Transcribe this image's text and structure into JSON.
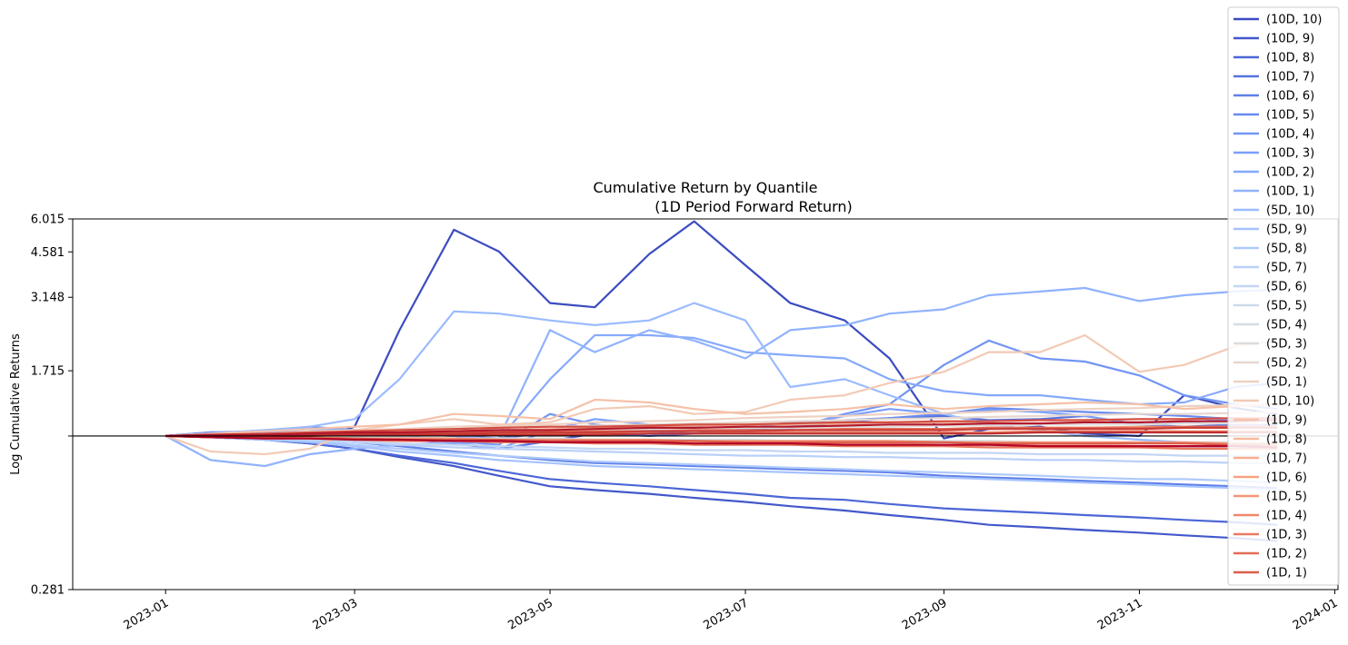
{
  "chart_data": {
    "type": "line",
    "title": "Cumulative Return by Quantile",
    "subtitle": "(1D Period Forward Return)",
    "ylabel": "Log Cumulative Returns",
    "xlabel": "",
    "yscale": "log",
    "ylim": [
      0.281,
      6.015
    ],
    "yticks": [
      0.281,
      1.715,
      3.148,
      4.581,
      6.015
    ],
    "ytick_labels": [
      "0.281",
      "1.715",
      "3.148",
      "4.581",
      "6.015"
    ],
    "xlim": [
      "2022-12-03",
      "2024-01-02"
    ],
    "xticks": [
      "2023-01-01",
      "2023-03-01",
      "2023-05-01",
      "2023-07-01",
      "2023-09-01",
      "2023-11-01",
      "2024-01-01"
    ],
    "xtick_labels": [
      "2023-01",
      "2023-03",
      "2023-05",
      "2023-07",
      "2023-09",
      "2023-11",
      "2024-01"
    ],
    "reference_line": 1.0,
    "grid": false,
    "legend_position": "top-right",
    "x": [
      "2023-01-01",
      "2023-01-15",
      "2023-02-01",
      "2023-02-15",
      "2023-03-01",
      "2023-03-15",
      "2023-04-01",
      "2023-04-15",
      "2023-05-01",
      "2023-05-15",
      "2023-06-01",
      "2023-06-15",
      "2023-07-01",
      "2023-07-15",
      "2023-08-01",
      "2023-08-15",
      "2023-09-01",
      "2023-09-15",
      "2023-10-01",
      "2023-10-15",
      "2023-11-01",
      "2023-11-15",
      "2023-12-01",
      "2023-12-14"
    ],
    "series": [
      {
        "name": "(10D, 10)",
        "color": "#3b4cc0",
        "values": [
          1.0,
          1.03,
          1.02,
          0.96,
          1.08,
          2.4,
          5.5,
          4.6,
          3.0,
          2.9,
          4.5,
          5.9,
          4.1,
          3.0,
          2.6,
          1.9,
          0.98,
          1.06,
          1.08,
          1.02,
          1.0,
          1.4,
          1.26,
          1.2
        ]
      },
      {
        "name": "(10D, 9)",
        "color": "#4358cb",
        "values": [
          1.0,
          0.99,
          0.97,
          0.94,
          0.9,
          0.84,
          0.78,
          0.72,
          0.66,
          0.64,
          0.62,
          0.6,
          0.58,
          0.56,
          0.54,
          0.52,
          0.5,
          0.48,
          0.47,
          0.46,
          0.45,
          0.44,
          0.43,
          0.42
        ]
      },
      {
        "name": "(10D, 8)",
        "color": "#4c66d6",
        "values": [
          1.0,
          0.99,
          0.97,
          0.94,
          0.9,
          0.85,
          0.8,
          0.75,
          0.7,
          0.68,
          0.66,
          0.64,
          0.62,
          0.6,
          0.59,
          0.57,
          0.55,
          0.54,
          0.53,
          0.52,
          0.51,
          0.5,
          0.49,
          0.48
        ]
      },
      {
        "name": "(10D, 7)",
        "color": "#5673e0",
        "values": [
          1.0,
          1.02,
          1.03,
          1.02,
          1.0,
          0.98,
          0.94,
          0.9,
          0.96,
          1.02,
          1.0,
          1.02,
          1.05,
          1.08,
          1.12,
          1.16,
          1.18,
          1.14,
          1.15,
          1.18,
          1.1,
          1.08,
          1.1,
          1.1
        ]
      },
      {
        "name": "(10D, 6)",
        "color": "#5f7fe8",
        "values": [
          1.0,
          1.01,
          1.0,
          0.98,
          0.95,
          0.92,
          0.88,
          0.85,
          0.82,
          0.8,
          0.79,
          0.78,
          0.77,
          0.76,
          0.75,
          0.74,
          0.72,
          0.71,
          0.7,
          0.69,
          0.68,
          0.67,
          0.66,
          0.65
        ]
      },
      {
        "name": "(10D, 5)",
        "color": "#688aef",
        "values": [
          1.0,
          1.03,
          1.04,
          1.06,
          1.05,
          1.02,
          1.0,
          0.98,
          1.03,
          1.08,
          1.04,
          1.02,
          1.06,
          1.12,
          1.14,
          1.16,
          1.2,
          1.26,
          1.24,
          1.22,
          1.2,
          1.18,
          1.15,
          1.14
        ]
      },
      {
        "name": "(10D, 4)",
        "color": "#7295f4",
        "values": [
          1.0,
          1.02,
          1.04,
          1.08,
          1.05,
          1.0,
          0.96,
          0.93,
          1.2,
          1.1,
          1.05,
          1.08,
          1.04,
          1.06,
          1.2,
          1.3,
          1.8,
          2.2,
          1.9,
          1.85,
          1.65,
          1.4,
          1.3,
          1.25
        ]
      },
      {
        "name": "(10D, 3)",
        "color": "#7b9ff9",
        "values": [
          1.0,
          1.02,
          1.03,
          1.06,
          1.03,
          1.0,
          0.95,
          0.9,
          1.05,
          1.15,
          1.1,
          1.05,
          1.02,
          1.08,
          1.18,
          1.25,
          1.2,
          1.24,
          1.22,
          1.18,
          1.1,
          1.12,
          1.15,
          1.15
        ]
      },
      {
        "name": "(10D, 2)",
        "color": "#86a9fc",
        "values": [
          1.0,
          1.02,
          1.05,
          1.06,
          1.04,
          1.02,
          1.0,
          0.97,
          1.6,
          2.3,
          2.3,
          2.25,
          2.0,
          1.95,
          1.9,
          1.6,
          1.45,
          1.4,
          1.4,
          1.35,
          1.3,
          1.32,
          1.5,
          1.55
        ]
      },
      {
        "name": "(10D, 1)",
        "color": "#90b2fe",
        "values": [
          1.0,
          0.82,
          0.78,
          0.86,
          0.9,
          0.93,
          0.95,
          0.98,
          2.4,
          2.0,
          2.4,
          2.2,
          1.9,
          2.4,
          2.5,
          2.75,
          2.85,
          3.2,
          3.3,
          3.4,
          3.05,
          3.2,
          3.3,
          3.35
        ]
      },
      {
        "name": "(5D, 10)",
        "color": "#9abbff",
        "values": [
          1.0,
          1.02,
          1.05,
          1.08,
          1.15,
          1.6,
          2.8,
          2.75,
          2.6,
          2.5,
          2.6,
          3.0,
          2.6,
          1.5,
          1.6,
          1.4,
          1.2,
          1.1,
          1.05,
          1.0,
          0.97,
          0.95,
          0.92,
          0.9
        ]
      },
      {
        "name": "(5D, 9)",
        "color": "#a5c3fe",
        "values": [
          1.0,
          0.99,
          0.97,
          0.95,
          0.92,
          0.88,
          0.85,
          0.82,
          0.8,
          0.78,
          0.77,
          0.76,
          0.75,
          0.74,
          0.73,
          0.72,
          0.71,
          0.7,
          0.69,
          0.68,
          0.67,
          0.66,
          0.65,
          0.64
        ]
      },
      {
        "name": "(5D, 8)",
        "color": "#afcafc",
        "values": [
          1.0,
          0.99,
          0.98,
          0.96,
          0.93,
          0.9,
          0.87,
          0.85,
          0.83,
          0.81,
          0.8,
          0.79,
          0.78,
          0.77,
          0.76,
          0.75,
          0.74,
          0.73,
          0.72,
          0.71,
          0.7,
          0.7,
          0.69,
          0.68
        ]
      },
      {
        "name": "(5D, 7)",
        "color": "#b9d0f9",
        "values": [
          1.0,
          1.0,
          0.99,
          0.97,
          0.95,
          0.93,
          0.91,
          0.9,
          0.89,
          0.88,
          0.87,
          0.86,
          0.85,
          0.85,
          0.84,
          0.84,
          0.83,
          0.83,
          0.82,
          0.82,
          0.81,
          0.81,
          0.8,
          0.8
        ]
      },
      {
        "name": "(5D, 6)",
        "color": "#c3d5f4",
        "values": [
          1.0,
          1.0,
          0.99,
          0.98,
          0.96,
          0.94,
          0.93,
          0.92,
          0.91,
          0.9,
          0.9,
          0.89,
          0.89,
          0.88,
          0.88,
          0.87,
          0.87,
          0.87,
          0.86,
          0.86,
          0.86,
          0.85,
          0.85,
          0.85
        ]
      },
      {
        "name": "(5D, 5)",
        "color": "#cdd9ec",
        "values": [
          1.0,
          1.0,
          1.0,
          0.99,
          0.98,
          0.97,
          0.96,
          0.95,
          0.95,
          0.94,
          0.94,
          0.93,
          0.93,
          0.93,
          0.92,
          0.92,
          0.92,
          0.92,
          0.91,
          0.91,
          0.91,
          0.91,
          0.9,
          0.9
        ]
      },
      {
        "name": "(5D, 4)",
        "color": "#d6dce4",
        "values": [
          1.0,
          1.0,
          1.0,
          1.0,
          0.99,
          0.99,
          0.98,
          0.98,
          0.98,
          0.97,
          0.97,
          0.97,
          0.97,
          0.96,
          0.96,
          0.96,
          0.96,
          0.96,
          0.95,
          0.95,
          0.95,
          0.95,
          0.95,
          0.95
        ]
      },
      {
        "name": "(5D, 3)",
        "color": "#dedcdb",
        "values": [
          1.0,
          1.01,
          1.01,
          1.02,
          1.02,
          1.03,
          1.04,
          1.04,
          1.05,
          1.05,
          1.06,
          1.06,
          1.07,
          1.07,
          1.08,
          1.08,
          1.09,
          1.09,
          1.1,
          1.1,
          1.1,
          1.11,
          1.11,
          1.11
        ]
      },
      {
        "name": "(5D, 2)",
        "color": "#e6d7cf",
        "values": [
          1.0,
          1.01,
          1.02,
          1.03,
          1.04,
          1.05,
          1.06,
          1.07,
          1.08,
          1.09,
          1.1,
          1.11,
          1.12,
          1.13,
          1.14,
          1.15,
          1.16,
          1.17,
          1.18,
          1.19,
          1.2,
          1.2,
          1.21,
          1.22
        ]
      },
      {
        "name": "(5D, 1)",
        "color": "#edd1c2",
        "values": [
          1.0,
          1.01,
          1.02,
          1.04,
          1.05,
          1.06,
          1.08,
          1.09,
          1.1,
          1.12,
          1.13,
          1.14,
          1.16,
          1.17,
          1.18,
          1.2,
          1.21,
          1.22,
          1.24,
          1.25,
          1.26,
          1.28,
          1.29,
          1.3
        ]
      },
      {
        "name": "(1D, 10)",
        "color": "#f2cab5",
        "values": [
          1.0,
          0.88,
          0.86,
          0.9,
          1.05,
          1.1,
          1.15,
          1.1,
          1.12,
          1.25,
          1.28,
          1.2,
          1.22,
          1.35,
          1.4,
          1.55,
          1.7,
          2.0,
          2.0,
          2.3,
          1.7,
          1.8,
          2.1,
          2.2
        ]
      },
      {
        "name": "(1D, 9)",
        "color": "#f5c1a9",
        "values": [
          1.0,
          1.02,
          1.04,
          1.06,
          1.08,
          1.1,
          1.2,
          1.18,
          1.15,
          1.35,
          1.32,
          1.25,
          1.2,
          1.22,
          1.25,
          1.3,
          1.25,
          1.28,
          1.3,
          1.32,
          1.3,
          1.25,
          1.28,
          1.3
        ]
      },
      {
        "name": "(1D, 8)",
        "color": "#f7b89c",
        "values": [
          1.0,
          1.01,
          1.01,
          1.02,
          1.03,
          1.04,
          1.04,
          1.05,
          1.06,
          1.07,
          1.08,
          1.09,
          1.1,
          1.1,
          1.11,
          1.12,
          1.12,
          1.13,
          1.14,
          1.14,
          1.15,
          1.15,
          1.16,
          1.16
        ]
      },
      {
        "name": "(1D, 7)",
        "color": "#f7ad90",
        "values": [
          1.0,
          0.99,
          0.99,
          0.98,
          0.98,
          0.97,
          0.97,
          0.96,
          0.96,
          0.96,
          0.95,
          0.95,
          0.95,
          0.94,
          0.94,
          0.94,
          0.93,
          0.93,
          0.93,
          0.93,
          0.92,
          0.92,
          0.92,
          0.92
        ]
      },
      {
        "name": "(1D, 6)",
        "color": "#f6a283",
        "values": [
          1.0,
          1.0,
          1.01,
          1.01,
          1.02,
          1.02,
          1.03,
          1.03,
          1.04,
          1.04,
          1.04,
          1.05,
          1.05,
          1.05,
          1.06,
          1.06,
          1.06,
          1.07,
          1.07,
          1.07,
          1.08,
          1.08,
          1.08,
          1.08
        ]
      },
      {
        "name": "(1D, 5)",
        "color": "#f39778",
        "values": [
          1.0,
          1.0,
          0.99,
          0.99,
          0.98,
          0.98,
          0.98,
          0.97,
          0.97,
          0.97,
          0.97,
          0.96,
          0.96,
          0.96,
          0.96,
          0.96,
          0.95,
          0.95,
          0.95,
          0.95,
          0.95,
          0.95,
          0.94,
          0.94
        ]
      },
      {
        "name": "(1D, 4)",
        "color": "#ef886b",
        "values": [
          1.0,
          1.0,
          1.0,
          1.01,
          1.01,
          1.01,
          1.01,
          1.02,
          1.02,
          1.02,
          1.02,
          1.02,
          1.03,
          1.03,
          1.03,
          1.03,
          1.03,
          1.03,
          1.04,
          1.04,
          1.04,
          1.04,
          1.04,
          1.04
        ]
      },
      {
        "name": "(1D, 3)",
        "color": "#ea7b60",
        "values": [
          1.0,
          0.99,
          0.98,
          0.98,
          0.97,
          0.96,
          0.96,
          0.95,
          0.95,
          0.94,
          0.94,
          0.93,
          0.93,
          0.93,
          0.92,
          0.92,
          0.92,
          0.91,
          0.91,
          0.91,
          0.91,
          0.9,
          0.9,
          0.9
        ]
      },
      {
        "name": "(1D, 2)",
        "color": "#e36c55",
        "values": [
          1.0,
          1.0,
          1.01,
          1.01,
          1.02,
          1.02,
          1.03,
          1.03,
          1.03,
          1.04,
          1.04,
          1.05,
          1.05,
          1.05,
          1.06,
          1.06,
          1.06,
          1.07,
          1.07,
          1.07,
          1.07,
          1.08,
          1.08,
          1.08
        ]
      },
      {
        "name": "(1D, 1)",
        "color": "#dc5d4a",
        "values": [
          1.0,
          0.99,
          0.99,
          0.98,
          0.98,
          0.97,
          0.97,
          0.97,
          0.96,
          0.96,
          0.96,
          0.96,
          0.95,
          0.95,
          0.95,
          0.95,
          0.95,
          0.94,
          0.94,
          0.94,
          0.94,
          0.94,
          0.93,
          0.93
        ]
      },
      {
        "name": "(1D, 10)",
        "color": "#d44e41",
        "values": [
          1.0,
          1.01,
          1.02,
          1.03,
          1.04,
          1.05,
          1.06,
          1.07,
          1.08,
          1.08,
          1.09,
          1.1,
          1.1,
          1.11,
          1.12,
          1.12,
          1.13,
          1.13,
          1.14,
          1.14,
          1.15,
          1.15,
          1.16,
          1.16
        ]
      },
      {
        "name": "(1D, 9)",
        "color": "#c93e38",
        "values": [
          1.0,
          1.0,
          1.01,
          1.01,
          1.02,
          1.02,
          1.02,
          1.03,
          1.03,
          1.03,
          1.04,
          1.04,
          1.04,
          1.05,
          1.05,
          1.05,
          1.05,
          1.06,
          1.06,
          1.06,
          1.06,
          1.07,
          1.07,
          1.07
        ]
      },
      {
        "name": "(1D, 8)",
        "color": "#be2f30",
        "values": [
          1.0,
          1.0,
          1.0,
          1.0,
          1.01,
          1.01,
          1.01,
          1.01,
          1.01,
          1.01,
          1.02,
          1.02,
          1.02,
          1.02,
          1.02,
          1.02,
          1.02,
          1.02,
          1.03,
          1.03,
          1.03,
          1.03,
          1.03,
          1.03
        ]
      },
      {
        "name": "(1D, 7)",
        "color": "#b2182b",
        "values": [
          1.0,
          1.01,
          1.01,
          1.02,
          1.03,
          1.03,
          1.04,
          1.05,
          1.05,
          1.06,
          1.07,
          1.07,
          1.08,
          1.08,
          1.09,
          1.1,
          1.1,
          1.11,
          1.11,
          1.12,
          1.12,
          1.13,
          1.13,
          1.14
        ]
      },
      {
        "name": "(1D, 6)",
        "color": "#b40426",
        "values": [
          1.0,
          0.99,
          0.98,
          0.98,
          0.97,
          0.97,
          0.96,
          0.96,
          0.95,
          0.95,
          0.95,
          0.94,
          0.94,
          0.94,
          0.93,
          0.93,
          0.93,
          0.93,
          0.92,
          0.92,
          0.92,
          0.92,
          0.92,
          0.91
        ]
      }
    ]
  }
}
